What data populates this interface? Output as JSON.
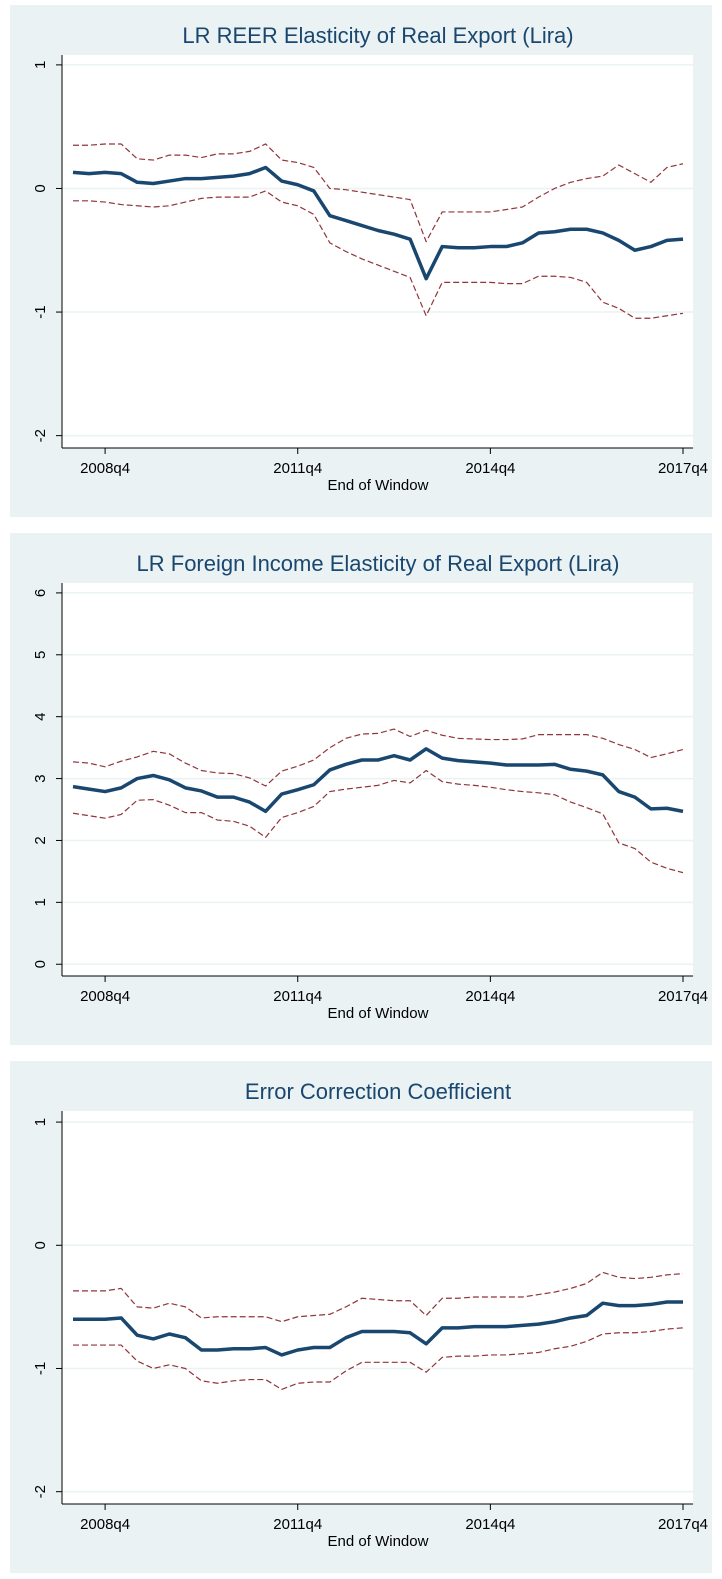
{
  "chart_data": [
    {
      "type": "line",
      "title": "LR REER Elasticity of Real Export (Lira)",
      "x_label": "End of Window",
      "categories": [
        null,
        null,
        "2008q4",
        null,
        null,
        null,
        null,
        null,
        null,
        null,
        null,
        null,
        null,
        null,
        "2011q4",
        null,
        null,
        null,
        null,
        null,
        null,
        null,
        null,
        null,
        null,
        null,
        "2014q4",
        null,
        null,
        null,
        null,
        null,
        null,
        null,
        null,
        null,
        null,
        null,
        "2017q4"
      ],
      "series": [
        {
          "color": "#1a476f",
          "style": "solid",
          "values": [
            0.13,
            0.12,
            0.13,
            0.12,
            0.05,
            0.04,
            0.06,
            0.08,
            0.08,
            0.09,
            0.1,
            0.12,
            0.17,
            0.06,
            0.03,
            -0.02,
            -0.22,
            -0.26,
            -0.3,
            -0.34,
            -0.37,
            -0.41,
            -0.73,
            -0.47,
            -0.48,
            -0.48,
            -0.47,
            -0.47,
            -0.44,
            -0.36,
            -0.35,
            -0.33,
            -0.33,
            -0.36,
            -0.42,
            -0.5,
            -0.47,
            -0.42,
            -0.41
          ]
        },
        {
          "color": "#90353b",
          "style": "dashed",
          "values": [
            0.35,
            0.35,
            0.36,
            0.36,
            0.24,
            0.23,
            0.27,
            0.27,
            0.25,
            0.28,
            0.28,
            0.3,
            0.36,
            0.23,
            0.21,
            0.17,
            0.0,
            -0.01,
            -0.03,
            -0.05,
            -0.07,
            -0.09,
            -0.43,
            -0.19,
            -0.19,
            -0.19,
            -0.19,
            -0.17,
            -0.15,
            -0.07,
            0.0,
            0.05,
            0.08,
            0.1,
            0.19,
            0.12,
            0.05,
            0.17,
            0.2
          ]
        },
        {
          "color": "#90353b",
          "style": "dashed",
          "values": [
            -0.1,
            -0.1,
            -0.11,
            -0.13,
            -0.14,
            -0.15,
            -0.14,
            -0.11,
            -0.08,
            -0.07,
            -0.07,
            -0.07,
            -0.02,
            -0.11,
            -0.14,
            -0.21,
            -0.44,
            -0.51,
            -0.57,
            -0.62,
            -0.67,
            -0.72,
            -1.03,
            -0.76,
            -0.76,
            -0.76,
            -0.76,
            -0.77,
            -0.77,
            -0.71,
            -0.71,
            -0.72,
            -0.76,
            -0.92,
            -0.97,
            -1.05,
            -1.05,
            -1.03,
            -1.01
          ]
        }
      ],
      "ylim": [
        -2.1,
        1.08
      ],
      "yticks": [
        -2,
        -1,
        0,
        1
      ],
      "grid": true
    },
    {
      "type": "line",
      "title": "LR Foreign Income Elasticity of Real Export (Lira)",
      "x_label": "End of Window",
      "categories": [
        null,
        null,
        "2008q4",
        null,
        null,
        null,
        null,
        null,
        null,
        null,
        null,
        null,
        null,
        null,
        "2011q4",
        null,
        null,
        null,
        null,
        null,
        null,
        null,
        null,
        null,
        null,
        null,
        "2014q4",
        null,
        null,
        null,
        null,
        null,
        null,
        null,
        null,
        null,
        null,
        null,
        "2017q4"
      ],
      "series": [
        {
          "color": "#1a476f",
          "style": "solid",
          "values": [
            2.87,
            2.83,
            2.79,
            2.85,
            3.0,
            3.05,
            2.98,
            2.85,
            2.8,
            2.7,
            2.7,
            2.62,
            2.47,
            2.75,
            2.82,
            2.9,
            3.14,
            3.23,
            3.3,
            3.3,
            3.37,
            3.3,
            3.48,
            3.33,
            3.29,
            3.27,
            3.25,
            3.22,
            3.22,
            3.22,
            3.23,
            3.15,
            3.12,
            3.06,
            2.79,
            2.7,
            2.51,
            2.52,
            2.47
          ]
        },
        {
          "color": "#90353b",
          "style": "dashed",
          "values": [
            3.27,
            3.25,
            3.19,
            3.28,
            3.35,
            3.44,
            3.4,
            3.25,
            3.13,
            3.09,
            3.08,
            3.01,
            2.88,
            3.12,
            3.2,
            3.3,
            3.5,
            3.65,
            3.72,
            3.73,
            3.8,
            3.68,
            3.78,
            3.7,
            3.65,
            3.64,
            3.63,
            3.63,
            3.64,
            3.71,
            3.71,
            3.71,
            3.71,
            3.65,
            3.55,
            3.47,
            3.34,
            3.4,
            3.47
          ]
        },
        {
          "color": "#90353b",
          "style": "dashed",
          "values": [
            2.44,
            2.4,
            2.36,
            2.42,
            2.65,
            2.66,
            2.57,
            2.45,
            2.45,
            2.33,
            2.31,
            2.23,
            2.05,
            2.37,
            2.45,
            2.55,
            2.79,
            2.83,
            2.86,
            2.89,
            2.97,
            2.93,
            3.13,
            2.95,
            2.91,
            2.89,
            2.86,
            2.82,
            2.79,
            2.77,
            2.74,
            2.62,
            2.53,
            2.43,
            1.96,
            1.87,
            1.65,
            1.55,
            1.48
          ]
        }
      ],
      "ylim": [
        -0.19,
        6.16
      ],
      "yticks": [
        0,
        1,
        2,
        3,
        4,
        5,
        6
      ],
      "grid": true
    },
    {
      "type": "line",
      "title": "Error Correction Coefficient",
      "x_label": "End of Window",
      "categories": [
        null,
        null,
        "2008q4",
        null,
        null,
        null,
        null,
        null,
        null,
        null,
        null,
        null,
        null,
        null,
        "2011q4",
        null,
        null,
        null,
        null,
        null,
        null,
        null,
        null,
        null,
        null,
        null,
        "2014q4",
        null,
        null,
        null,
        null,
        null,
        null,
        null,
        null,
        null,
        null,
        null,
        "2017q4"
      ],
      "series": [
        {
          "color": "#1a476f",
          "style": "solid",
          "values": [
            -0.6,
            -0.6,
            -0.6,
            -0.59,
            -0.73,
            -0.76,
            -0.72,
            -0.75,
            -0.85,
            -0.85,
            -0.84,
            -0.84,
            -0.83,
            -0.89,
            -0.85,
            -0.83,
            -0.83,
            -0.75,
            -0.7,
            -0.7,
            -0.7,
            -0.71,
            -0.8,
            -0.67,
            -0.67,
            -0.66,
            -0.66,
            -0.66,
            -0.65,
            -0.64,
            -0.62,
            -0.59,
            -0.57,
            -0.47,
            -0.49,
            -0.49,
            -0.48,
            -0.46,
            -0.46
          ]
        },
        {
          "color": "#90353b",
          "style": "dashed",
          "values": [
            -0.37,
            -0.37,
            -0.37,
            -0.35,
            -0.5,
            -0.51,
            -0.47,
            -0.5,
            -0.59,
            -0.58,
            -0.58,
            -0.58,
            -0.58,
            -0.62,
            -0.58,
            -0.57,
            -0.56,
            -0.5,
            -0.43,
            -0.44,
            -0.45,
            -0.45,
            -0.57,
            -0.43,
            -0.43,
            -0.42,
            -0.42,
            -0.42,
            -0.42,
            -0.4,
            -0.38,
            -0.35,
            -0.31,
            -0.22,
            -0.26,
            -0.27,
            -0.26,
            -0.24,
            -0.23
          ]
        },
        {
          "color": "#90353b",
          "style": "dashed",
          "values": [
            -0.81,
            -0.81,
            -0.81,
            -0.81,
            -0.94,
            -1.0,
            -0.97,
            -1.0,
            -1.1,
            -1.12,
            -1.1,
            -1.09,
            -1.09,
            -1.17,
            -1.12,
            -1.11,
            -1.11,
            -1.02,
            -0.95,
            -0.95,
            -0.95,
            -0.95,
            -1.03,
            -0.91,
            -0.9,
            -0.9,
            -0.89,
            -0.89,
            -0.88,
            -0.87,
            -0.84,
            -0.82,
            -0.78,
            -0.72,
            -0.71,
            -0.71,
            -0.7,
            -0.68,
            -0.67
          ]
        }
      ],
      "ylim": [
        -2.1,
        1.09
      ],
      "yticks": [
        -2,
        -1,
        0,
        1
      ],
      "grid": true
    }
  ]
}
